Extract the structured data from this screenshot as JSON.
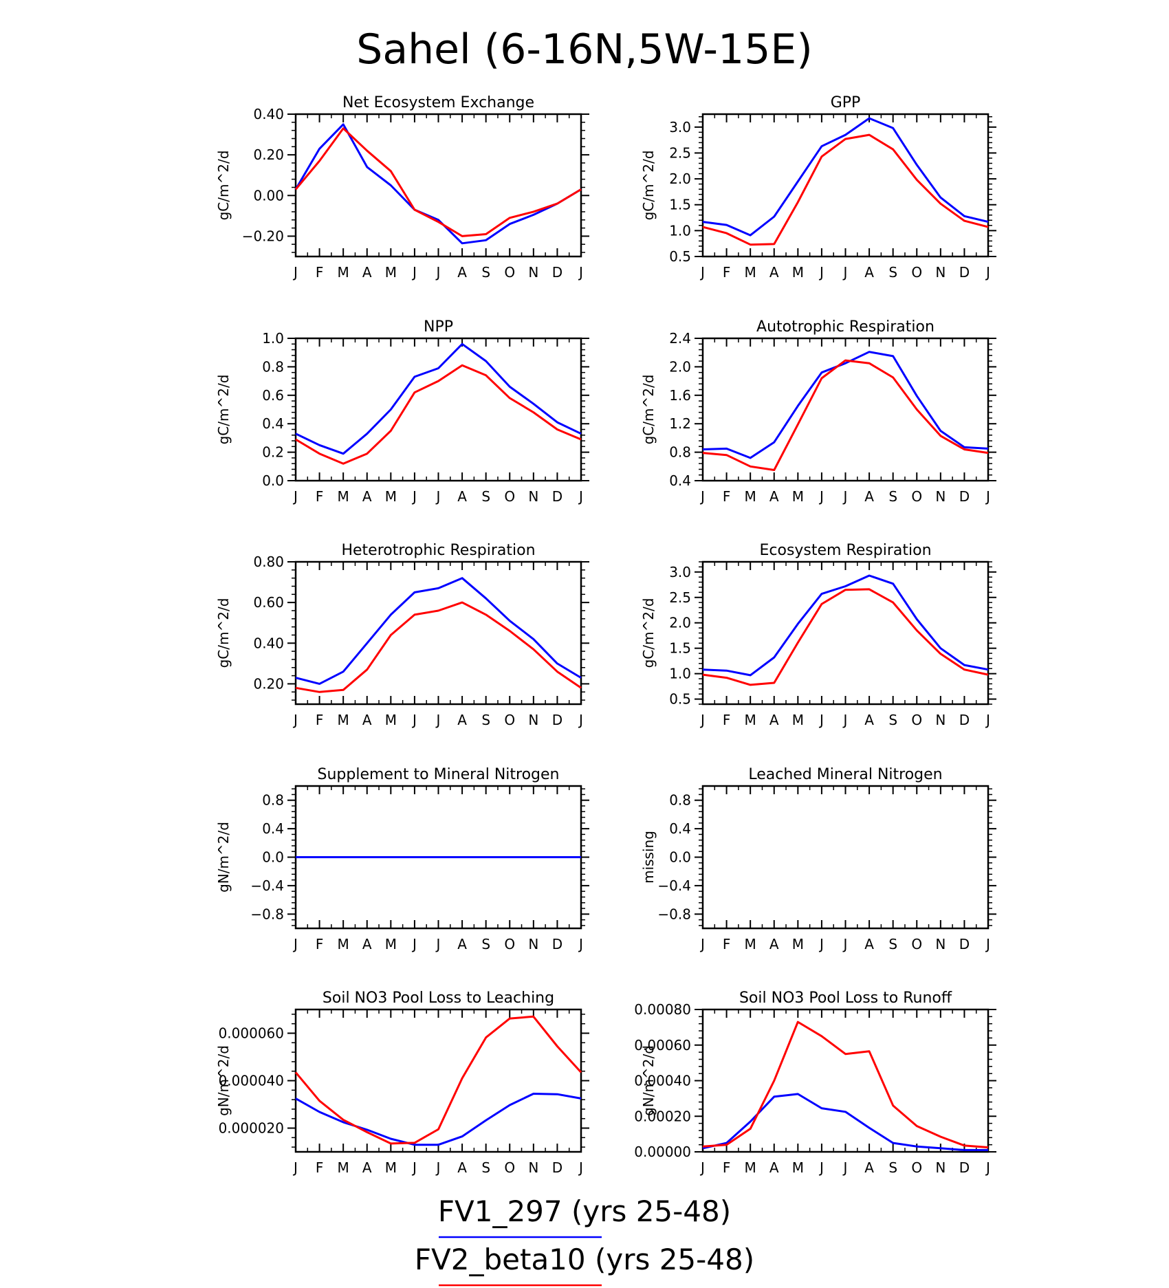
{
  "title": "Sahel (6-16N,5W-15E)",
  "months": [
    "J",
    "F",
    "M",
    "A",
    "M",
    "J",
    "J",
    "A",
    "S",
    "O",
    "N",
    "D",
    "J"
  ],
  "colors": {
    "series1": "#0000ff",
    "series2": "#ff0000",
    "axis": "#000000"
  },
  "legend": [
    {
      "label": "FV1_297 (yrs 25-48)",
      "color": "#0000ff"
    },
    {
      "label": "FV2_beta10 (yrs 25-48)",
      "color": "#ff0000"
    }
  ],
  "chart_data": [
    {
      "type": "line",
      "title": "Net Ecosystem Exchange",
      "ylabel": "gC/m^2/d",
      "ylim": [
        -0.3,
        0.4
      ],
      "yticks": [
        0.4,
        0.2,
        0.0,
        -0.2
      ],
      "yticklabels": [
        "0.40",
        "0.20",
        "0.00",
        "−0.20"
      ],
      "series": [
        {
          "name": "FV1_297 (yrs 25-48)",
          "color": "#0000ff",
          "values": [
            0.03,
            0.23,
            0.35,
            0.14,
            0.05,
            -0.07,
            -0.12,
            -0.235,
            -0.22,
            -0.14,
            -0.095,
            -0.04,
            0.03
          ]
        },
        {
          "name": "FV2_beta10 (yrs 25-48)",
          "color": "#ff0000",
          "values": [
            0.03,
            0.17,
            0.33,
            0.22,
            0.12,
            -0.07,
            -0.13,
            -0.2,
            -0.19,
            -0.11,
            -0.08,
            -0.04,
            0.03
          ]
        }
      ]
    },
    {
      "type": "line",
      "title": "GPP",
      "ylabel": "gC/m^2/d",
      "ylim": [
        0.5,
        3.25
      ],
      "yticks": [
        3.0,
        2.5,
        2.0,
        1.5,
        1.0,
        0.5
      ],
      "yticklabels": [
        "3.0",
        "2.5",
        "2.0",
        "1.5",
        "1.0",
        "0.5"
      ],
      "series": [
        {
          "name": "FV1_297 (yrs 25-48)",
          "color": "#0000ff",
          "values": [
            1.17,
            1.11,
            0.91,
            1.27,
            1.95,
            2.63,
            2.85,
            3.17,
            2.98,
            2.27,
            1.64,
            1.28,
            1.17
          ]
        },
        {
          "name": "FV2_beta10 (yrs 25-48)",
          "color": "#ff0000",
          "values": [
            1.07,
            0.95,
            0.73,
            0.74,
            1.55,
            2.43,
            2.77,
            2.85,
            2.57,
            1.98,
            1.52,
            1.19,
            1.07
          ]
        }
      ]
    },
    {
      "type": "line",
      "title": "NPP",
      "ylabel": "gC/m^2/d",
      "ylim": [
        0.0,
        1.0
      ],
      "yticks": [
        1.0,
        0.8,
        0.6,
        0.4,
        0.2,
        0.0
      ],
      "yticklabels": [
        "1.0",
        "0.8",
        "0.6",
        "0.4",
        "0.2",
        "0.0"
      ],
      "series": [
        {
          "name": "FV1_297 (yrs 25-48)",
          "color": "#0000ff",
          "values": [
            0.33,
            0.25,
            0.19,
            0.33,
            0.5,
            0.73,
            0.79,
            0.96,
            0.84,
            0.66,
            0.54,
            0.41,
            0.33
          ]
        },
        {
          "name": "FV2_beta10 (yrs 25-48)",
          "color": "#ff0000",
          "values": [
            0.29,
            0.19,
            0.12,
            0.19,
            0.35,
            0.62,
            0.7,
            0.81,
            0.74,
            0.58,
            0.48,
            0.36,
            0.29
          ]
        }
      ]
    },
    {
      "type": "line",
      "title": "Autotrophic Respiration",
      "ylabel": "gC/m^2/d",
      "ylim": [
        0.4,
        2.4
      ],
      "yticks": [
        2.4,
        2.0,
        1.6,
        1.2,
        0.8,
        0.4
      ],
      "yticklabels": [
        "2.4",
        "2.0",
        "1.6",
        "1.2",
        "0.8",
        "0.4"
      ],
      "series": [
        {
          "name": "FV1_297 (yrs 25-48)",
          "color": "#0000ff",
          "values": [
            0.84,
            0.85,
            0.72,
            0.94,
            1.45,
            1.92,
            2.05,
            2.21,
            2.15,
            1.59,
            1.1,
            0.87,
            0.85
          ]
        },
        {
          "name": "FV2_beta10 (yrs 25-48)",
          "color": "#ff0000",
          "values": [
            0.79,
            0.76,
            0.6,
            0.55,
            1.19,
            1.84,
            2.09,
            2.05,
            1.85,
            1.4,
            1.03,
            0.84,
            0.79
          ]
        }
      ]
    },
    {
      "type": "line",
      "title": "Heterotrophic Respiration",
      "ylabel": "gC/m^2/d",
      "ylim": [
        0.1,
        0.8
      ],
      "yticks": [
        0.8,
        0.6,
        0.4,
        0.2
      ],
      "yticklabels": [
        "0.80",
        "0.60",
        "0.40",
        "0.20"
      ],
      "series": [
        {
          "name": "FV1_297 (yrs 25-48)",
          "color": "#0000ff",
          "values": [
            0.23,
            0.2,
            0.26,
            0.4,
            0.54,
            0.65,
            0.67,
            0.72,
            0.62,
            0.51,
            0.42,
            0.3,
            0.23
          ]
        },
        {
          "name": "FV2_beta10 (yrs 25-48)",
          "color": "#ff0000",
          "values": [
            0.18,
            0.16,
            0.17,
            0.27,
            0.44,
            0.54,
            0.56,
            0.6,
            0.54,
            0.46,
            0.37,
            0.26,
            0.18
          ]
        }
      ]
    },
    {
      "type": "line",
      "title": "Ecosystem Respiration",
      "ylabel": "gC/m^2/d",
      "ylim": [
        0.4,
        3.2
      ],
      "yticks": [
        3.0,
        2.5,
        2.0,
        1.5,
        1.0,
        0.5
      ],
      "yticklabels": [
        "3.0",
        "2.5",
        "2.0",
        "1.5",
        "1.0",
        "0.5"
      ],
      "series": [
        {
          "name": "FV1_297 (yrs 25-48)",
          "color": "#0000ff",
          "values": [
            1.08,
            1.06,
            0.97,
            1.32,
            1.98,
            2.57,
            2.72,
            2.93,
            2.77,
            2.07,
            1.5,
            1.17,
            1.08
          ]
        },
        {
          "name": "FV2_beta10 (yrs 25-48)",
          "color": "#ff0000",
          "values": [
            0.98,
            0.92,
            0.78,
            0.82,
            1.61,
            2.37,
            2.65,
            2.66,
            2.4,
            1.85,
            1.39,
            1.08,
            0.98
          ]
        }
      ]
    },
    {
      "type": "line",
      "title": "Supplement to Mineral Nitrogen",
      "ylabel": "gN/m^2/d",
      "ylim": [
        -1.0,
        1.0
      ],
      "yticks": [
        0.8,
        0.4,
        0.0,
        -0.4,
        -0.8
      ],
      "yticklabels": [
        "0.8",
        "0.4",
        "0.0",
        "−0.4",
        "−0.8"
      ],
      "series": [
        {
          "name": "FV2_beta10 (yrs 25-48)",
          "color": "#ff0000",
          "values": [
            0,
            0,
            0,
            0,
            0,
            0,
            0,
            0,
            0,
            0,
            0,
            0,
            0
          ]
        },
        {
          "name": "FV1_297 (yrs 25-48)",
          "color": "#0000ff",
          "values": [
            0,
            0,
            0,
            0,
            0,
            0,
            0,
            0,
            0,
            0,
            0,
            0,
            0
          ]
        }
      ]
    },
    {
      "type": "line",
      "title": "Leached Mineral Nitrogen",
      "ylabel": "missing",
      "ylim": [
        -1.0,
        1.0
      ],
      "yticks": [
        0.8,
        0.4,
        0.0,
        -0.4,
        -0.8
      ],
      "yticklabels": [
        "0.8",
        "0.4",
        "0.0",
        "−0.4",
        "−0.8"
      ],
      "series": []
    },
    {
      "type": "line",
      "title": "Soil NO3 Pool Loss to Leaching",
      "ylabel": "gN/m^2/d",
      "ylim": [
        1e-05,
        7e-05
      ],
      "yticks": [
        6e-05,
        4e-05,
        2e-05
      ],
      "yticklabels": [
        "0.000060",
        "0.000040",
        "0.000020"
      ],
      "series": [
        {
          "name": "FV1_297 (yrs 25-48)",
          "color": "#0000ff",
          "values": [
            3.25e-05,
            2.68e-05,
            2.25e-05,
            1.93e-05,
            1.55e-05,
            1.3e-05,
            1.3e-05,
            1.65e-05,
            2.33e-05,
            2.97e-05,
            3.45e-05,
            3.43e-05,
            3.25e-05
          ]
        },
        {
          "name": "FV2_beta10 (yrs 25-48)",
          "color": "#ff0000",
          "values": [
            4.35e-05,
            3.15e-05,
            2.35e-05,
            1.83e-05,
            1.35e-05,
            1.38e-05,
            1.95e-05,
            4.1e-05,
            5.82e-05,
            6.62e-05,
            6.7e-05,
            5.45e-05,
            4.35e-05
          ]
        }
      ]
    },
    {
      "type": "line",
      "title": "Soil NO3 Pool Loss to Runoff",
      "ylabel": "gN/m^2/d",
      "ylim": [
        0.0,
        0.0008
      ],
      "yticks": [
        0.0008,
        0.0006,
        0.0004,
        0.0002,
        0.0
      ],
      "yticklabels": [
        "0.00080",
        "0.00060",
        "0.00040",
        "0.00020",
        "0.00000"
      ],
      "series": [
        {
          "name": "FV1_297 (yrs 25-48)",
          "color": "#0000ff",
          "values": [
            2e-05,
            5e-05,
            0.00017,
            0.00031,
            0.000325,
            0.000245,
            0.000225,
            0.000135,
            5e-05,
            3e-05,
            2e-05,
            1e-05,
            1e-05
          ]
        },
        {
          "name": "FV2_beta10 (yrs 25-48)",
          "color": "#ff0000",
          "values": [
            3e-05,
            4e-05,
            0.00013,
            0.0004,
            0.00073,
            0.00065,
            0.00055,
            0.000565,
            0.00026,
            0.000145,
            8.5e-05,
            3.5e-05,
            2.5e-05
          ]
        }
      ]
    }
  ]
}
